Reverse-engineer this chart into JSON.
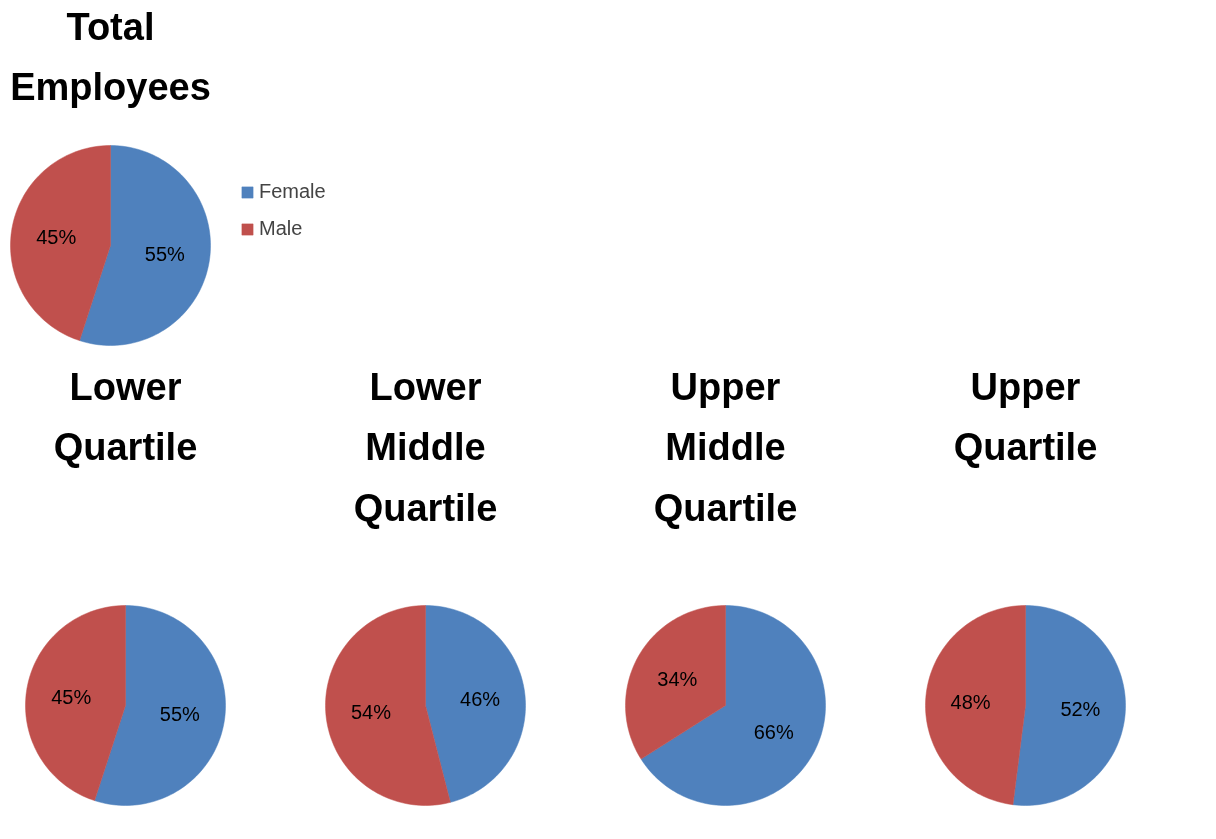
{
  "chart_data": [
    {
      "type": "pie",
      "title": "Total\nEmployees",
      "categories": [
        "Female",
        "Male"
      ],
      "values": [
        55,
        45
      ],
      "colors": [
        "#4f81bd",
        "#c0504d"
      ],
      "value_labels": [
        "55%",
        "45%"
      ],
      "legend": "right"
    },
    {
      "type": "pie",
      "title": "Lower\nQuartile",
      "categories": [
        null,
        null
      ],
      "values": [
        55,
        45
      ],
      "colors": [
        "#4f81bd",
        "#c0504d"
      ],
      "value_labels": [
        "55%",
        "45%"
      ]
    },
    {
      "type": "pie",
      "title": "Lower\nMiddle\nQuartile",
      "categories": [
        null,
        null
      ],
      "values": [
        46,
        54
      ],
      "colors": [
        "#4f81bd",
        "#c0504d"
      ],
      "value_labels": [
        "46%",
        "54%"
      ]
    },
    {
      "type": "pie",
      "title": "Upper\nMiddle\nQuartile",
      "categories": [
        null,
        null
      ],
      "values": [
        66,
        34
      ],
      "colors": [
        "#4f81bd",
        "#c0504d"
      ],
      "value_labels": [
        "66%",
        "34%"
      ]
    },
    {
      "type": "pie",
      "title": "Upper\nQuartile",
      "categories": [
        null,
        null
      ],
      "values": [
        52,
        48
      ],
      "colors": [
        "#4f81bd",
        "#c0504d"
      ],
      "value_labels": [
        "52%",
        "48%"
      ]
    }
  ]
}
